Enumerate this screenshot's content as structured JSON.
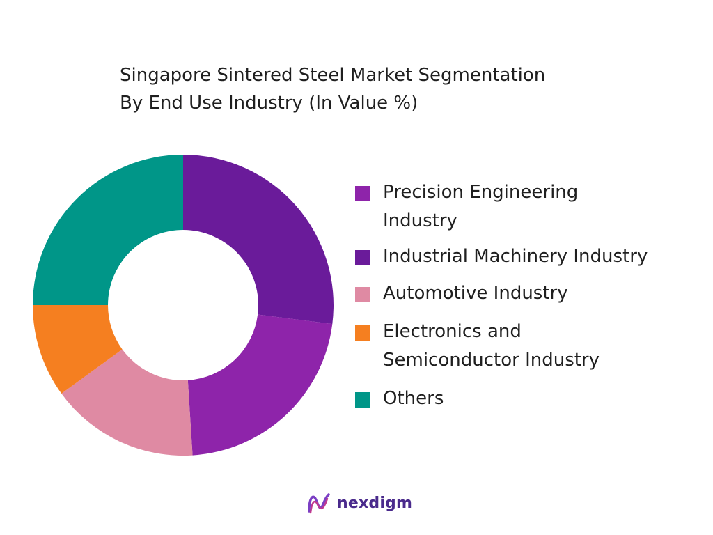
{
  "title": {
    "line1": "Singapore Sintered Steel Market Segmentation",
    "line2": "By End Use Industry (In Value %)"
  },
  "brand": {
    "name": "nexdigm"
  },
  "chart_data": {
    "type": "pie",
    "donut": true,
    "title": "Singapore Sintered Steel Market Segmentation By End Use Industry (In Value %)",
    "legend_position": "right",
    "start_angle_deg": 0,
    "direction": "clockwise",
    "slices": [
      {
        "label": "Industrial Machinery Industry",
        "value": 27,
        "color": "#6a1b9a"
      },
      {
        "label": "Precision Engineering Industry",
        "value": 22,
        "color": "#8e24aa"
      },
      {
        "label": "Automotive Industry",
        "value": 16,
        "color": "#df8aa3"
      },
      {
        "label": "Electronics and Semiconductor Industry",
        "value": 10,
        "color": "#f57f20"
      },
      {
        "label": "Others",
        "value": 25,
        "color": "#009688"
      }
    ]
  },
  "legend": [
    {
      "label": "Precision Engineering\nIndustry",
      "color": "#8e24aa"
    },
    {
      "label": "Industrial Machinery Industry",
      "color": "#6a1b9a"
    },
    {
      "label": "Automotive Industry",
      "color": "#df8aa3"
    },
    {
      "label": "Electronics and\nSemiconductor Industry",
      "color": "#f57f20"
    },
    {
      "label": "Others",
      "color": "#009688"
    }
  ]
}
